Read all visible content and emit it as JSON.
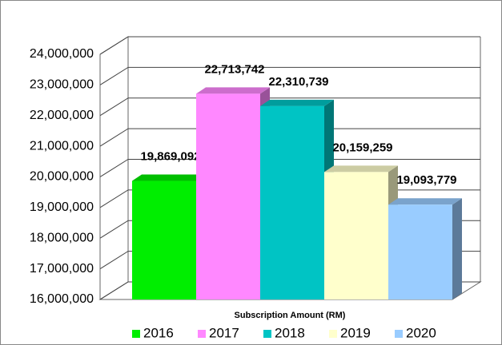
{
  "chart_data": {
    "type": "bar3d",
    "x_label": "Subscription Amount (RM)",
    "categories": [
      "2016",
      "2017",
      "2018",
      "2019",
      "2020"
    ],
    "values": [
      19869092,
      22713742,
      22310739,
      20159259,
      19093779
    ],
    "value_labels": [
      "19,869,092",
      "22,713,742",
      "22,310,739",
      "20,159,259",
      "19,093,779"
    ],
    "colors": [
      "#00ee00",
      "#ff88ff",
      "#00c4c4",
      "#ffffcc",
      "#99ccff"
    ],
    "ylim": [
      16000000,
      24000000
    ],
    "yticks": [
      {
        "value": 16000000,
        "label": "16,000,000"
      },
      {
        "value": 17000000,
        "label": "17,000,000"
      },
      {
        "value": 18000000,
        "label": "18,000,000"
      },
      {
        "value": 19000000,
        "label": "19,000,000"
      },
      {
        "value": 20000000,
        "label": "20,000,000"
      },
      {
        "value": 21000000,
        "label": "21,000,000"
      },
      {
        "value": 22000000,
        "label": "22,000,000"
      },
      {
        "value": 23000000,
        "label": "23,000,000"
      },
      {
        "value": 24000000,
        "label": "24,000,000"
      }
    ],
    "grid": true,
    "legend": "bottom"
  }
}
